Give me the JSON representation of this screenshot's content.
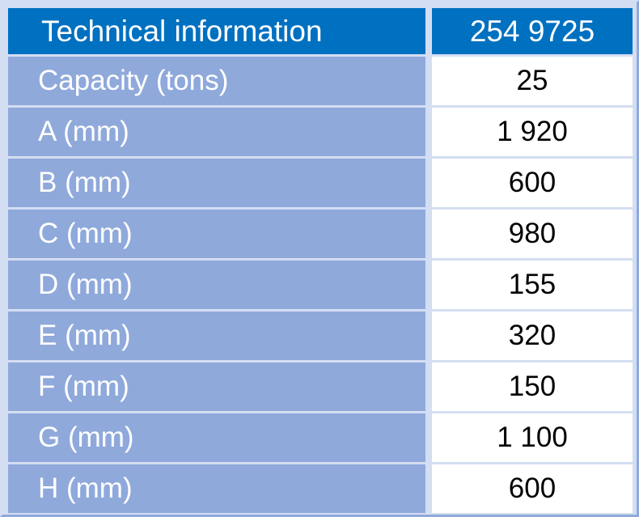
{
  "header": {
    "title": "Technical information",
    "code": "254 9725"
  },
  "rows": [
    {
      "label": "Capacity (tons)",
      "value": "25"
    },
    {
      "label": "A (mm)",
      "value": "1 920"
    },
    {
      "label": "B (mm)",
      "value": "600"
    },
    {
      "label": "C (mm)",
      "value": "980"
    },
    {
      "label": "D (mm)",
      "value": "155"
    },
    {
      "label": "E (mm)",
      "value": "320"
    },
    {
      "label": "F (mm)",
      "value": "150"
    },
    {
      "label": "G (mm)",
      "value": "1 100"
    },
    {
      "label": "H (mm)",
      "value": "600"
    }
  ],
  "colors": {
    "header_bg": "#0070c0",
    "label_bg": "#8fa9db",
    "frame": "#d4def2"
  }
}
